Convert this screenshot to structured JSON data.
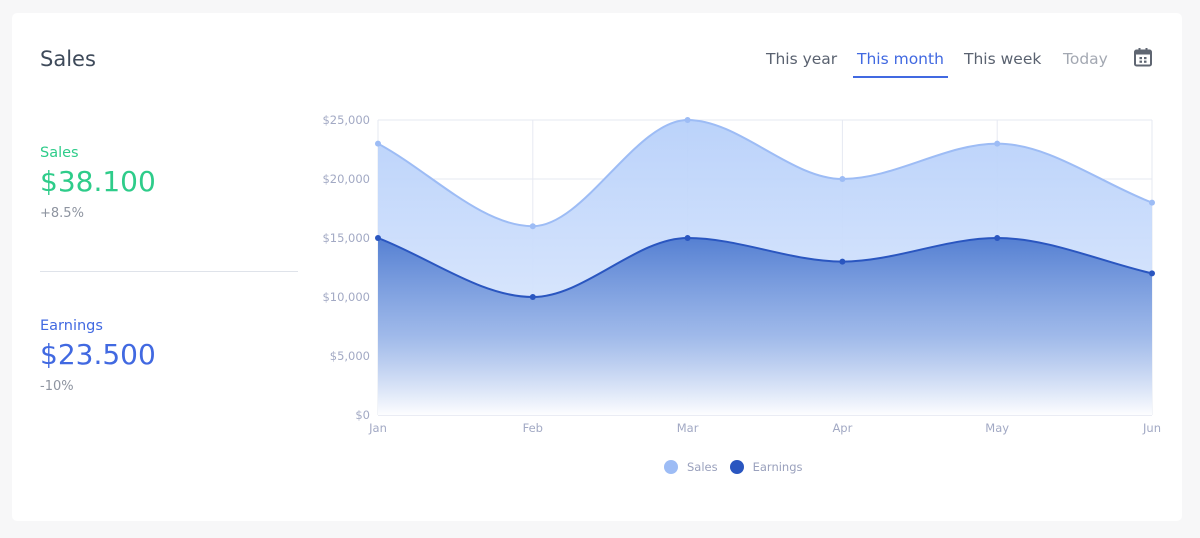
{
  "header": {
    "title": "Sales",
    "tabs": [
      {
        "label": "This year",
        "state": "default"
      },
      {
        "label": "This month",
        "state": "active"
      },
      {
        "label": "This week",
        "state": "default"
      },
      {
        "label": "Today",
        "state": "muted"
      }
    ],
    "calendar_icon": "calendar-icon"
  },
  "stats": {
    "sales": {
      "label": "Sales",
      "value": "$38.100",
      "change": "+8.5%",
      "color": "#2ecc8a"
    },
    "earnings": {
      "label": "Earnings",
      "value": "$23.500",
      "change": "-10%",
      "color": "#4169e1"
    }
  },
  "legend": {
    "sales": "Sales",
    "earnings": "Earnings"
  },
  "colors": {
    "accent": "#4169e1",
    "sales_line": "#9dbcf5",
    "sales_fill": "#c9dbfb",
    "earnings_line": "#2a56c0",
    "earnings_fill": "#5b84d3"
  },
  "chart_data": {
    "type": "area",
    "title": "",
    "xlabel": "",
    "ylabel": "",
    "categories": [
      "Jan",
      "Feb",
      "Mar",
      "Apr",
      "May",
      "Jun"
    ],
    "y_ticks": [
      "$0",
      "$5,000",
      "$10,000",
      "$15,000",
      "$20,000",
      "$25,000"
    ],
    "ylim": [
      0,
      25000
    ],
    "grid": true,
    "legend_position": "bottom",
    "series": [
      {
        "name": "Sales",
        "values": [
          23000,
          16000,
          25000,
          20000,
          23000,
          18000
        ],
        "color": "#9dbcf5"
      },
      {
        "name": "Earnings",
        "values": [
          15000,
          10000,
          15000,
          13000,
          15000,
          12000
        ],
        "color": "#2a56c0"
      }
    ]
  }
}
